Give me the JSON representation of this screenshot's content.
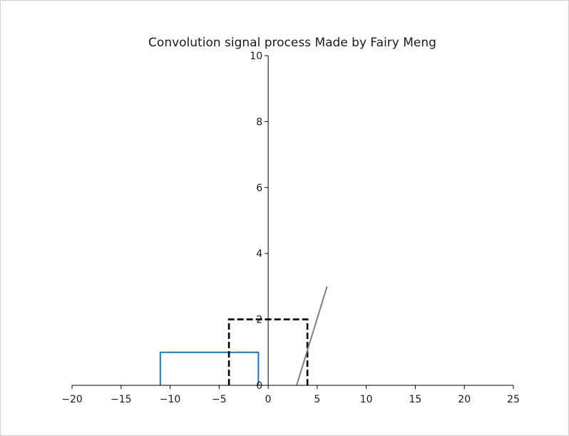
{
  "chart_data": {
    "type": "line",
    "title": "Convolution signal process Made by Fairy Meng",
    "xlabel": "",
    "ylabel": "",
    "xlim": [
      -20,
      25
    ],
    "ylim": [
      0,
      10
    ],
    "x_ticks": [
      -20,
      -15,
      -10,
      -5,
      0,
      5,
      10,
      15,
      20,
      25
    ],
    "x_tick_labels": [
      "−20",
      "−15",
      "−10",
      "−5",
      "0",
      "5",
      "10",
      "15",
      "20",
      "25"
    ],
    "y_ticks": [
      0,
      2,
      4,
      6,
      8,
      10
    ],
    "y_tick_labels": [
      "0",
      "2",
      "4",
      "6",
      "8",
      "10"
    ],
    "grid": false,
    "series": [
      {
        "color": "#1f77b4",
        "style": "solid",
        "x": [
          -11,
          -11,
          -1,
          -1
        ],
        "y": [
          0,
          1,
          1,
          0
        ]
      },
      {
        "color": "#000000",
        "style": "dashed",
        "x": [
          -4,
          -4,
          4,
          4
        ],
        "y": [
          0,
          2,
          2,
          0
        ]
      },
      {
        "color": "#808080",
        "style": "solid",
        "x": [
          2.9,
          6
        ],
        "y": [
          0,
          3
        ]
      }
    ]
  }
}
